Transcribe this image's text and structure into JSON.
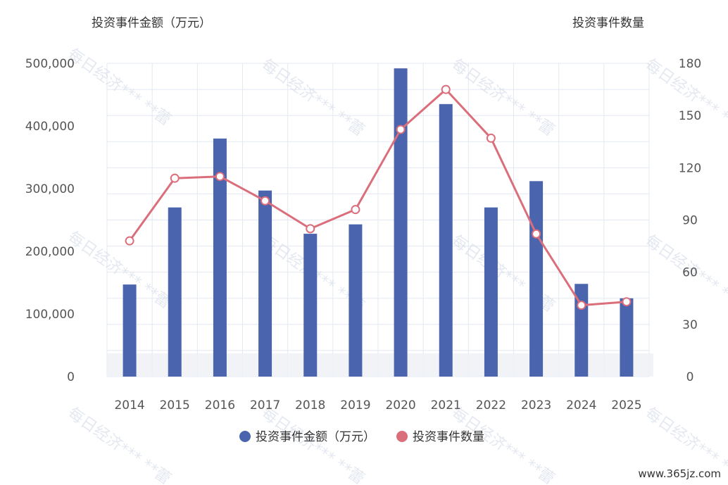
{
  "chart_data": {
    "type": "bar",
    "categories": [
      "2014",
      "2015",
      "2016",
      "2017",
      "2018",
      "2019",
      "2020",
      "2021",
      "2022",
      "2023",
      "2024",
      "2025"
    ],
    "series": [
      {
        "name": "投资事件金额（万元）",
        "type": "bar",
        "axis": "left",
        "values": [
          147000,
          270000,
          380000,
          297000,
          228000,
          243000,
          492000,
          435000,
          270000,
          312000,
          148000,
          125000
        ]
      },
      {
        "name": "投资事件数量",
        "type": "line",
        "axis": "right",
        "values": [
          78,
          114,
          115,
          101,
          85,
          96,
          142,
          165,
          137,
          82,
          41,
          43
        ]
      }
    ],
    "ylabel_left": "投资事件金额（万元）",
    "ylabel_right": "投资事件数量",
    "ylim_left": [
      0,
      500000
    ],
    "ylim_right": [
      0,
      180
    ],
    "yticks_left": [
      "500,000",
      "400,000",
      "300,000",
      "200,000",
      "100,000",
      "0"
    ],
    "yticks_right": [
      "180",
      "150",
      "120",
      "90",
      "60",
      "30",
      "0"
    ],
    "grid": true,
    "legend_position": "bottom-center",
    "colors": {
      "bar": "#4a65ad",
      "line": "#db6e7b",
      "grid": "#e3e8f2"
    }
  },
  "watermark_text": "每日经济*** **蕾",
  "site_label": "www.365jz.com"
}
